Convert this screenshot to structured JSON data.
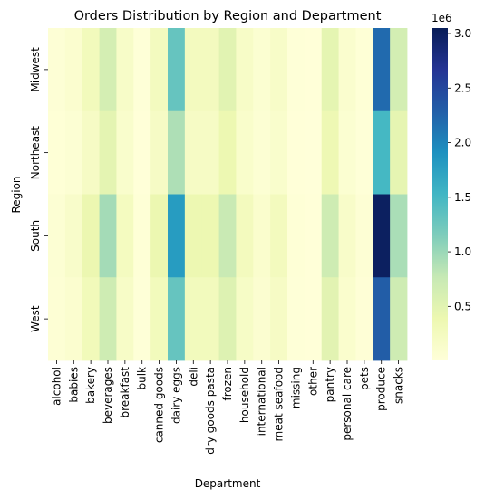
{
  "chart_data": {
    "type": "heatmap",
    "title": "Orders Distribution by Region and Department",
    "xlabel": "Department",
    "ylabel": "Region",
    "x": [
      "alcohol",
      "babies",
      "bakery",
      "beverages",
      "breakfast",
      "bulk",
      "canned goods",
      "dairy eggs",
      "deli",
      "dry goods pasta",
      "frozen",
      "household",
      "international",
      "meat seafood",
      "missing",
      "other",
      "pantry",
      "personal care",
      "pets",
      "produce",
      "snacks"
    ],
    "y": [
      "Midwest",
      "Northeast",
      "South",
      "West"
    ],
    "values": [
      [
        40000,
        100000,
        280000,
        640000,
        170000,
        20000,
        250000,
        1300000,
        250000,
        250000,
        510000,
        180000,
        80000,
        170000,
        20000,
        10000,
        470000,
        110000,
        30000,
        2200000,
        650000
      ],
      [
        30000,
        60000,
        200000,
        480000,
        130000,
        15000,
        200000,
        900000,
        200000,
        200000,
        380000,
        140000,
        60000,
        130000,
        15000,
        8000,
        360000,
        80000,
        20000,
        1500000,
        460000
      ],
      [
        60000,
        150000,
        400000,
        950000,
        240000,
        30000,
        400000,
        1800000,
        380000,
        380000,
        750000,
        260000,
        120000,
        260000,
        30000,
        15000,
        700000,
        160000,
        50000,
        3000000,
        920000
      ],
      [
        50000,
        100000,
        300000,
        700000,
        180000,
        20000,
        280000,
        1300000,
        270000,
        270000,
        550000,
        190000,
        90000,
        200000,
        20000,
        10000,
        500000,
        120000,
        35000,
        2300000,
        700000
      ]
    ],
    "colorbar": {
      "ticks": [
        0.5,
        1.0,
        1.5,
        2.0,
        2.5,
        3.0
      ],
      "exponent_label": "1e6",
      "vmin": 5000,
      "vmax": 3050000,
      "colormap": "YlGnBu"
    }
  }
}
